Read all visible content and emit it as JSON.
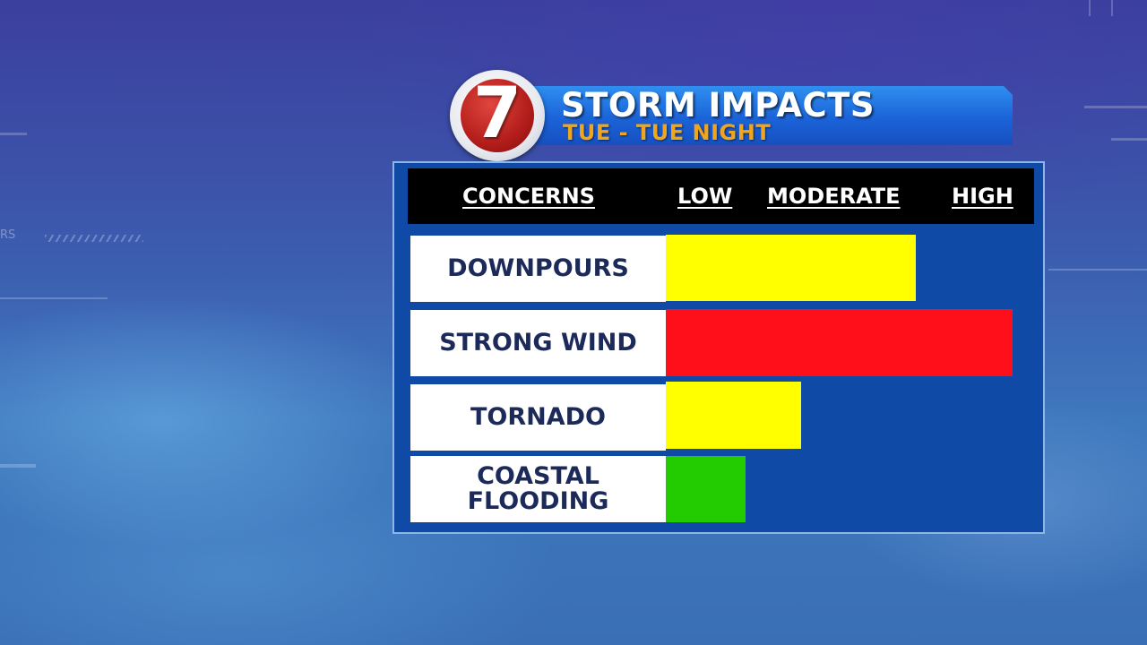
{
  "header": {
    "logo_text": "7",
    "title": "STORM IMPACTS",
    "subtitle": "TUE - TUE NIGHT"
  },
  "table": {
    "columns": [
      "CONCERNS",
      "LOW",
      "MODERATE",
      "HIGH"
    ]
  },
  "colors": {
    "high": "#ff0f1a",
    "moderate": "#ffff00",
    "low": "#22cc00",
    "panel": "#0f4aa6"
  },
  "chart_data": {
    "type": "bar",
    "orientation": "horizontal",
    "categories": [
      "DOWNPOURS",
      "STRONG WIND",
      "TORNADO",
      "COASTAL FLOODING"
    ],
    "values": [
      0.72,
      1.0,
      0.39,
      0.23
    ],
    "bar_colors": [
      "#ffff00",
      "#ff0f1a",
      "#ffff00",
      "#22cc00"
    ],
    "scale_labels": [
      "LOW",
      "MODERATE",
      "HIGH"
    ],
    "xlim": [
      0,
      1
    ]
  },
  "background": {
    "edge_text": "RS"
  }
}
